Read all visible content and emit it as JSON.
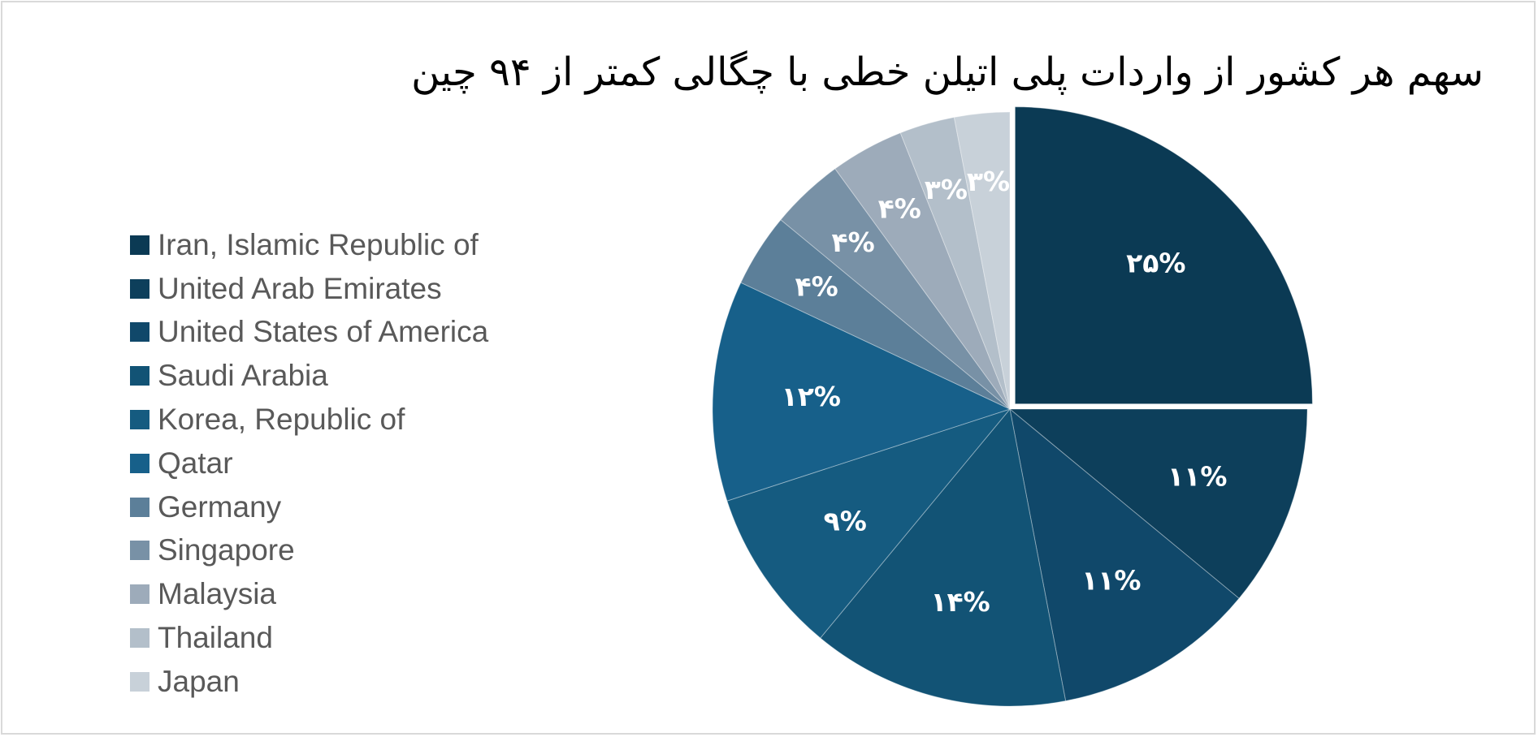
{
  "chart_data": {
    "type": "pie",
    "title": "سهم هر کشور از واردات پلی اتیلن خطی با چگالی کمتر از ۹۴ چین",
    "legend_position": "left",
    "start_angle_deg": 0,
    "direction": "clockwise",
    "slices": [
      {
        "name": "Iran, Islamic Republic of",
        "value": 25,
        "label": "۲۵%",
        "color": "#0b3a54",
        "exploded": true
      },
      {
        "name": "United Arab Emirates",
        "value": 11,
        "label": "۱۱%",
        "color": "#0d3f5b"
      },
      {
        "name": "United States of America",
        "value": 11,
        "label": "۱۱%",
        "color": "#10486a"
      },
      {
        "name": "Saudi Arabia",
        "value": 14,
        "label": "۱۴%",
        "color": "#125375"
      },
      {
        "name": "Korea, Republic of",
        "value": 9,
        "label": "۹%",
        "color": "#155b80"
      },
      {
        "name": "Qatar",
        "value": 12,
        "label": "۱۲%",
        "color": "#17608a"
      },
      {
        "name": "Germany",
        "value": 4,
        "label": "۴%",
        "color": "#5c7f99"
      },
      {
        "name": "Singapore",
        "value": 4,
        "label": "۴%",
        "color": "#7891a6"
      },
      {
        "name": "Malaysia",
        "value": 4,
        "label": "۴%",
        "color": "#9dabba"
      },
      {
        "name": "Thailand",
        "value": 3,
        "label": "۳%",
        "color": "#b3bfca"
      },
      {
        "name": "Japan",
        "value": 3,
        "label": "۳%",
        "color": "#c8d1d9"
      }
    ]
  }
}
